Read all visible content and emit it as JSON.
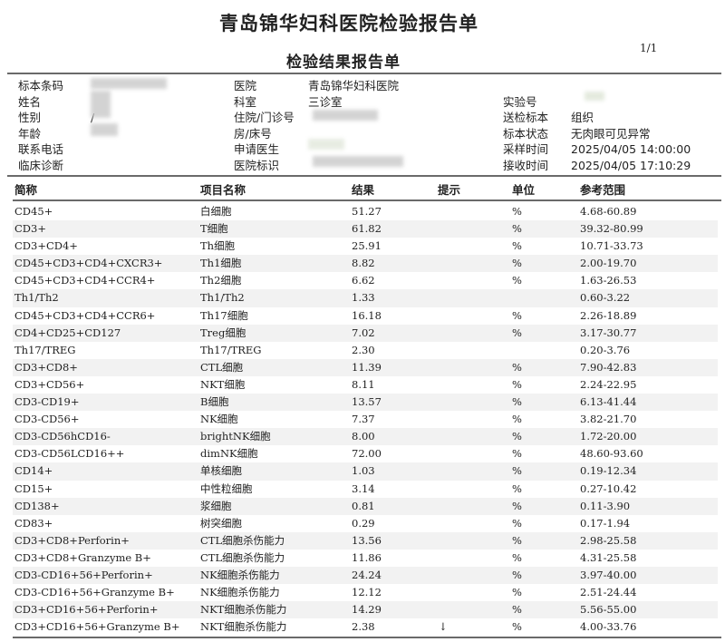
{
  "header": {
    "title": "青岛锦华妇科医院检验报告单",
    "subtitle": "检验结果报告单",
    "page": "1/1"
  },
  "info": [
    {
      "label": "标本条码",
      "value": ""
    },
    {
      "label": "姓名",
      "value": ""
    },
    {
      "label": "性别",
      "value": "/"
    },
    {
      "label": "年龄",
      "value": ""
    },
    {
      "label": "联系电话",
      "value": ""
    },
    {
      "label": "临床诊断",
      "value": ""
    }
  ],
  "info2": [
    {
      "label": "医院",
      "value": "青岛锦华妇科医院"
    },
    {
      "label": "科室",
      "value": "三诊室"
    },
    {
      "label": "住院/门诊号",
      "value": ""
    },
    {
      "label": "房/床号",
      "value": ""
    },
    {
      "label": "申请医生",
      "value": ""
    },
    {
      "label": "医院标识",
      "value": ""
    }
  ],
  "info3": [
    {
      "label": "实验号",
      "value": ""
    },
    {
      "label": "送检标本",
      "value": "组织"
    },
    {
      "label": "标本状态",
      "value": "无肉眼可见异常"
    },
    {
      "label": "采样时间",
      "value": "2025/04/05 14:00:00"
    },
    {
      "label": "接收时间",
      "value": "2025/04/05 17:10:29"
    }
  ],
  "table": {
    "columns": [
      "简称",
      "项目名称",
      "结果",
      "提示",
      "单位",
      "参考范围"
    ],
    "rows": [
      [
        "CD45+",
        "白细胞",
        "51.27",
        "",
        "%",
        "4.68-60.89"
      ],
      [
        "CD3+",
        "T细胞",
        "61.82",
        "",
        "%",
        "39.32-80.99"
      ],
      [
        "CD3+CD4+",
        "Th细胞",
        "25.91",
        "",
        "%",
        "10.71-33.73"
      ],
      [
        "CD45+CD3+CD4+CXCR3+",
        "Th1细胞",
        "8.82",
        "",
        "%",
        "2.00-19.70"
      ],
      [
        "CD45+CD3+CD4+CCR4+",
        "Th2细胞",
        "6.62",
        "",
        "%",
        "1.63-26.53"
      ],
      [
        "Th1/Th2",
        "Th1/Th2",
        "1.33",
        "",
        "",
        "0.60-3.22"
      ],
      [
        "CD45+CD3+CD4+CCR6+",
        "Th17细胞",
        "16.18",
        "",
        "%",
        "2.26-18.89"
      ],
      [
        "CD4+CD25+CD127",
        "Treg细胞",
        "7.02",
        "",
        "%",
        "3.17-30.77"
      ],
      [
        "Th17/TREG",
        "Th17/TREG",
        "2.30",
        "",
        "",
        "0.20-3.76"
      ],
      [
        "CD3+CD8+",
        "CTL细胞",
        "11.39",
        "",
        "%",
        "7.90-42.83"
      ],
      [
        "CD3+CD56+",
        "NKT细胞",
        "8.11",
        "",
        "%",
        "2.24-22.95"
      ],
      [
        "CD3-CD19+",
        "B细胞",
        "13.57",
        "",
        "%",
        "6.13-41.44"
      ],
      [
        "CD3-CD56+",
        "NK细胞",
        "7.37",
        "",
        "%",
        "3.82-21.70"
      ],
      [
        "CD3-CD56hCD16-",
        "brightNK细胞",
        "8.00",
        "",
        "%",
        "1.72-20.00"
      ],
      [
        "CD3-CD56LCD16++",
        "dimNK细胞",
        "72.00",
        "",
        "%",
        "48.60-93.60"
      ],
      [
        "CD14+",
        "单核细胞",
        "1.03",
        "",
        "%",
        "0.19-12.34"
      ],
      [
        "CD15+",
        "中性粒细胞",
        "3.14",
        "",
        "%",
        "0.27-10.42"
      ],
      [
        "CD138+",
        "浆细胞",
        "0.81",
        "",
        "%",
        "0.11-3.90"
      ],
      [
        "CD83+",
        "树突细胞",
        "0.29",
        "",
        "%",
        "0.17-1.94"
      ],
      [
        "CD3+CD8+Perforin+",
        "CTL细胞杀伤能力",
        "13.56",
        "",
        "%",
        "2.98-25.58"
      ],
      [
        "CD3+CD8+Granzyme B+",
        "CTL细胞杀伤能力",
        "11.86",
        "",
        "%",
        "4.31-25.58"
      ],
      [
        "CD3-CD16+56+Perforin+",
        "NK细胞杀伤能力",
        "24.24",
        "",
        "%",
        "3.97-40.00"
      ],
      [
        "CD3-CD16+56+Granzyme B+",
        "NK细胞杀伤能力",
        "12.12",
        "",
        "%",
        "2.51-24.44"
      ],
      [
        "CD3+CD16+56+Perforin+",
        "NKT细胞杀伤能力",
        "14.29",
        "",
        "%",
        "5.56-55.00"
      ],
      [
        "CD3+CD16+56+Granzyme B+",
        "NKT细胞杀伤能力",
        "2.38",
        "↓",
        "%",
        "4.00-33.76"
      ]
    ]
  }
}
